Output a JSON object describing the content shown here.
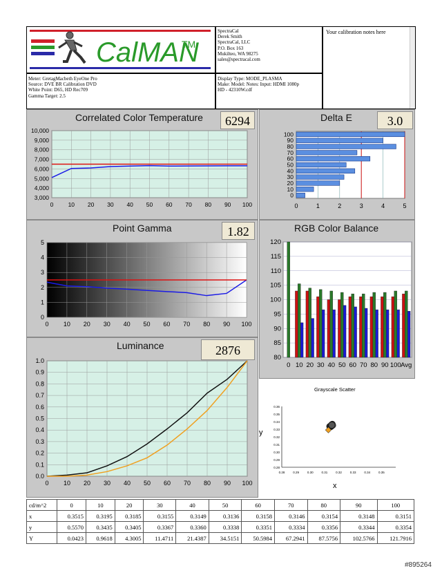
{
  "header": {
    "logo_text": "CalMAN",
    "logo_tm": "TM",
    "contact_lines": [
      "SpectraCal",
      "Derek Smith",
      "SpectraCal, LLC",
      "P.O. Box 163",
      "Mukilteo, WA 98275",
      "sales@spectracal.com"
    ],
    "notes": "Your calibration notes here",
    "meter_lines": [
      "Meter: GretagMacbeth EyeOne Pro",
      "Source: DVE BR Calibration DVD",
      "White Point: D65, HD Rec709",
      "Gamma Target: 2.5"
    ],
    "display_lines": [
      "Display Type: MODE_PLASMA",
      "Make:  Model:  Notes: Input: HDMI 1080p",
      "HD   -    42310W.cdf"
    ]
  },
  "cct": {
    "title": "Correlated Color Temperature",
    "value": "6294",
    "chart_data": {
      "type": "line",
      "x": [
        0,
        10,
        20,
        30,
        40,
        50,
        60,
        70,
        80,
        90,
        100
      ],
      "series": [
        {
          "color": "#1a1ae6",
          "values": [
            5100,
            6050,
            6100,
            6250,
            6300,
            6350,
            6300,
            6310,
            6320,
            6330,
            6330
          ]
        },
        {
          "color": "#dd1111",
          "values": [
            6500,
            6500,
            6500,
            6500,
            6500,
            6500,
            6500,
            6500,
            6500,
            6500,
            6500
          ]
        }
      ],
      "xlim": [
        0,
        100
      ],
      "ylim": [
        3000,
        10000
      ],
      "yticks": [
        "3,000",
        "4,000",
        "5,000",
        "6,000",
        "7,000",
        "8,000",
        "9,000",
        "10,000"
      ],
      "xticks": [
        "0",
        "10",
        "20",
        "30",
        "40",
        "50",
        "60",
        "70",
        "80",
        "90",
        "100"
      ]
    }
  },
  "deltae": {
    "title": "Delta E",
    "value": "3.0",
    "chart_data": {
      "type": "bar",
      "categories": [
        "0",
        "10",
        "20",
        "30",
        "40",
        "50",
        "60",
        "70",
        "80",
        "90",
        "100"
      ],
      "values": [
        0.4,
        0.8,
        2.0,
        2.2,
        2.7,
        2.3,
        3.4,
        2.8,
        4.6,
        4.0,
        5.0
      ],
      "xlim": [
        0,
        5
      ],
      "xticks": [
        "0",
        "1",
        "2",
        "3",
        "4",
        "5"
      ],
      "threshold_lines": [
        3,
        5
      ]
    }
  },
  "gamma": {
    "title": "Point Gamma",
    "value": "1.82",
    "chart_data": {
      "type": "line",
      "x": [
        0,
        10,
        20,
        30,
        40,
        50,
        60,
        70,
        80,
        90,
        100
      ],
      "series": [
        {
          "color": "#1a1ae6",
          "values": [
            2.35,
            2.1,
            2.05,
            1.95,
            1.88,
            1.8,
            1.72,
            1.65,
            1.45,
            1.6,
            2.5
          ]
        },
        {
          "color": "#dd1111",
          "values": [
            2.5,
            2.5,
            2.5,
            2.5,
            2.5,
            2.5,
            2.5,
            2.5,
            2.5,
            2.5,
            2.5
          ]
        }
      ],
      "xlim": [
        0,
        100
      ],
      "ylim": [
        0,
        5
      ],
      "yticks": [
        "0",
        "1",
        "2",
        "3",
        "4",
        "5"
      ],
      "xticks": [
        "0",
        "10",
        "20",
        "30",
        "40",
        "50",
        "60",
        "70",
        "80",
        "90",
        "100"
      ]
    }
  },
  "rgb": {
    "title": "RGB Color Balance",
    "chart_data": {
      "type": "bar",
      "categories": [
        "0",
        "10",
        "20",
        "30",
        "40",
        "50",
        "60",
        "70",
        "80",
        "90",
        "100",
        "Avg"
      ],
      "series": [
        {
          "color": "#cc1111",
          "values": [
            null,
            103,
            103,
            101,
            100,
            100,
            101,
            101,
            101,
            101,
            101,
            102
          ]
        },
        {
          "color": "#2a7a2a",
          "values": [
            120,
            105.5,
            104,
            103.5,
            103,
            102.5,
            102,
            102,
            102.5,
            102.5,
            103,
            103
          ]
        },
        {
          "color": "#1a1ad6",
          "values": [
            null,
            92,
            93.5,
            96.5,
            96.5,
            98,
            97.5,
            97,
            96.5,
            96.5,
            96.5,
            96
          ]
        }
      ],
      "ylim": [
        80,
        120
      ],
      "yticks": [
        "80",
        "85",
        "90",
        "95",
        "100",
        "105",
        "110",
        "115",
        "120"
      ]
    }
  },
  "luminance": {
    "title": "Luminance",
    "value": "2876",
    "chart_data": {
      "type": "line",
      "x": [
        0,
        10,
        20,
        30,
        40,
        50,
        60,
        70,
        80,
        90,
        100
      ],
      "series": [
        {
          "color": "#111111",
          "values": [
            0,
            0.01,
            0.03,
            0.09,
            0.17,
            0.28,
            0.41,
            0.55,
            0.72,
            0.84,
            1.0
          ]
        },
        {
          "color": "#f0a020",
          "values": [
            0,
            0,
            0.01,
            0.04,
            0.09,
            0.16,
            0.27,
            0.41,
            0.57,
            0.77,
            1.0
          ]
        }
      ],
      "xlim": [
        0,
        100
      ],
      "ylim": [
        0,
        1
      ],
      "yticks": [
        "0.0",
        "0.1",
        "0.2",
        "0.3",
        "0.4",
        "0.5",
        "0.6",
        "0.7",
        "0.8",
        "0.9",
        "1.0"
      ],
      "xticks": [
        "0",
        "10",
        "20",
        "30",
        "40",
        "50",
        "60",
        "70",
        "80",
        "90",
        "100"
      ]
    }
  },
  "scatter": {
    "title": "Grayscale Scatter",
    "xlabel": "x",
    "ylabel": "y",
    "chart_data": {
      "type": "scatter",
      "points": [
        {
          "x": 0.3136,
          "y": 0.3338
        },
        {
          "x": 0.3149,
          "y": 0.336
        },
        {
          "x": 0.3155,
          "y": 0.3367
        },
        {
          "x": 0.3158,
          "y": 0.3351
        },
        {
          "x": 0.3146,
          "y": 0.3334
        },
        {
          "x": 0.3154,
          "y": 0.3356
        },
        {
          "x": 0.3148,
          "y": 0.3344
        },
        {
          "x": 0.3151,
          "y": 0.3354
        },
        {
          "x": 0.3127,
          "y": 0.329
        }
      ],
      "xlim": [
        0.28,
        0.36
      ],
      "ylim": [
        0.28,
        0.36
      ],
      "xticks": [
        "0.28",
        "0.29",
        "0.30",
        "0.31",
        "0.32",
        "0.33",
        "0.34",
        "0.35"
      ],
      "yticks": [
        "0.28",
        "0.29",
        "0.30",
        "0.31",
        "0.32",
        "0.33",
        "0.34",
        "0.35",
        "0.36"
      ]
    }
  },
  "table": {
    "headers": [
      "cd/m^2",
      "0",
      "10",
      "20",
      "30",
      "40",
      "50",
      "60",
      "70",
      "80",
      "90",
      "100"
    ],
    "rows": [
      [
        "x",
        "0.3515",
        "0.3195",
        "0.3185",
        "0.3155",
        "0.3149",
        "0.3136",
        "0.3158",
        "0.3146",
        "0.3154",
        "0.3148",
        "0.3151"
      ],
      [
        "y",
        "0.5570",
        "0.3435",
        "0.3405",
        "0.3367",
        "0.3360",
        "0.3338",
        "0.3351",
        "0.3334",
        "0.3356",
        "0.3344",
        "0.3354"
      ],
      [
        "Y",
        "0.0423",
        "0.9618",
        "4.3005",
        "11.4711",
        "21.4387",
        "34.5151",
        "50.5984",
        "67.2941",
        "87.5756",
        "102.5766",
        "121.7916"
      ]
    ]
  },
  "watermark": "#895264",
  "colors": {
    "panel_bg": "#c8c8c8",
    "plot_bg": "#d6f0e6",
    "value_box": "#efe9d5",
    "bar_blue": "#5b8fe0"
  }
}
